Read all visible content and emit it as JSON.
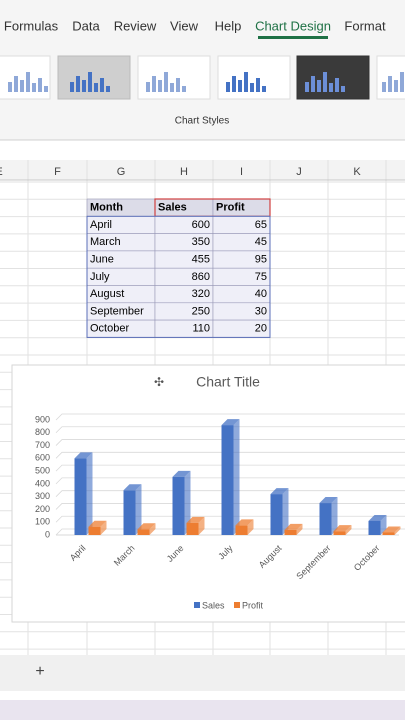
{
  "ribbon": {
    "tabs": [
      "Formulas",
      "Data",
      "Review",
      "View",
      "Help",
      "Chart Design",
      "Format"
    ],
    "group_label": "Chart Styles"
  },
  "sheet": {
    "columns": [
      "E",
      "F",
      "G",
      "H",
      "I",
      "J",
      "K"
    ],
    "table": {
      "headers": [
        "Month",
        "Sales",
        "Profit"
      ],
      "rows": [
        [
          "April",
          600,
          65
        ],
        [
          "March",
          350,
          45
        ],
        [
          "June",
          455,
          95
        ],
        [
          "July",
          860,
          75
        ],
        [
          "August",
          320,
          40
        ],
        [
          "September",
          250,
          30
        ],
        [
          "October",
          110,
          20
        ]
      ]
    }
  },
  "chart_data": {
    "type": "bar3d",
    "title": "Chart Title",
    "categories": [
      "April",
      "March",
      "June",
      "July",
      "August",
      "September",
      "October"
    ],
    "series": [
      {
        "name": "Sales",
        "color": "#4472c4",
        "values": [
          600,
          350,
          455,
          860,
          320,
          250,
          110
        ]
      },
      {
        "name": "Profit",
        "color": "#ed7d31",
        "values": [
          65,
          45,
          95,
          75,
          40,
          30,
          20
        ]
      }
    ],
    "ylim": [
      0,
      900
    ],
    "yticks": [
      0,
      100,
      200,
      300,
      400,
      500,
      600,
      700,
      800,
      900
    ],
    "grid": true,
    "legend": "bottom"
  },
  "footer": {
    "add_sheet": "+"
  }
}
